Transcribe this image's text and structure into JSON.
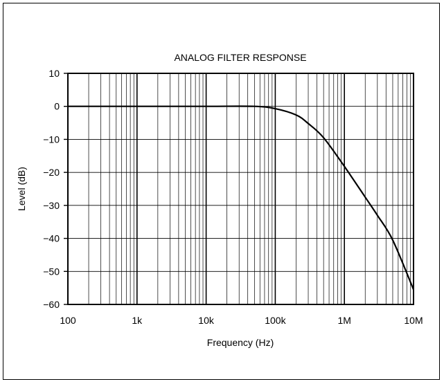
{
  "chart_data": {
    "type": "line",
    "title": "ANALOG FILTER RESPONSE",
    "xlabel": "Frequency (Hz)",
    "ylabel": "Level (dB)",
    "xscale": "log",
    "xlim": [
      100,
      10000000
    ],
    "ylim": [
      -60,
      10
    ],
    "grid": true,
    "x_ticks": [
      100,
      1000,
      10000,
      100000,
      1000000,
      10000000
    ],
    "x_tick_labels": [
      "100",
      "1k",
      "10k",
      "100k",
      "1M",
      "10M"
    ],
    "y_ticks": [
      10,
      0,
      -10,
      -20,
      -30,
      -40,
      -50,
      -60
    ],
    "y_tick_labels": [
      "10",
      "0",
      "−10",
      "−20",
      "−30",
      "−40",
      "−50",
      "−60"
    ],
    "series": [
      {
        "color": "#000000",
        "x": [
          100,
          1000,
          10000,
          50000,
          100000,
          200000,
          300000,
          500000,
          1000000,
          2000000,
          3000000,
          5000000,
          10000000
        ],
        "y": [
          0,
          0,
          0,
          0,
          -0.7,
          -2.6,
          -5.2,
          -9.5,
          -18.2,
          -27.5,
          -33.0,
          -40.5,
          -55.5
        ]
      }
    ]
  }
}
